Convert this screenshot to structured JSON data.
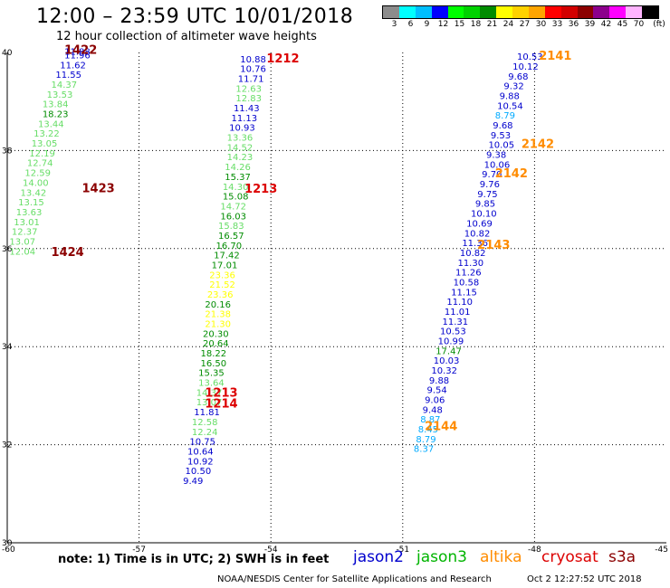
{
  "header": {
    "title": "12:00 – 23:59 UTC 10/01/2018",
    "subtitle": "12 hour collection of altimeter wave heights"
  },
  "legend": {
    "unit": "(ft)",
    "bins": [
      {
        "label": "3",
        "color": "#8c8c8c"
      },
      {
        "label": "6",
        "color": "#00ffff"
      },
      {
        "label": "9",
        "color": "#00bfff"
      },
      {
        "label": "12",
        "color": "#0000ff"
      },
      {
        "label": "15",
        "color": "#00ff00"
      },
      {
        "label": "18",
        "color": "#00d200"
      },
      {
        "label": "21",
        "color": "#008c00"
      },
      {
        "label": "24",
        "color": "#ffff00"
      },
      {
        "label": "27",
        "color": "#ffd200"
      },
      {
        "label": "30",
        "color": "#ffa500"
      },
      {
        "label": "33",
        "color": "#ff0000"
      },
      {
        "label": "36",
        "color": "#d20000"
      },
      {
        "label": "39",
        "color": "#8c0000"
      },
      {
        "label": "42",
        "color": "#8c008c"
      },
      {
        "label": "45",
        "color": "#ff00ff"
      },
      {
        "label": "70",
        "color": "#ffb4ff"
      },
      {
        "label": "",
        "color": "#000000"
      }
    ]
  },
  "map_axes": {
    "lon_range": [
      -60,
      -45
    ],
    "lat_range": [
      30,
      40
    ],
    "lon_ticks": [
      "-60",
      "-57",
      "-54",
      "-51",
      "-48",
      "-45"
    ],
    "lat_ticks": [
      "30",
      "32",
      "34",
      "36",
      "38",
      "40"
    ],
    "lon_tick_values": [
      -60,
      -57,
      -54,
      -51,
      -48,
      -45
    ],
    "lat_tick_values": [
      30,
      32,
      34,
      36,
      38,
      40
    ],
    "grid": "dotted"
  },
  "colors": {
    "jason2": "#0000cd",
    "jason3": "#00b400",
    "altika": "#ff8c00",
    "cryosat": "#dc0000",
    "s3a": "#8b0000",
    "light_green": "#66dd66",
    "dark_green": "#008c00",
    "yellow": "#ffff00",
    "cyan_blue": "#00aaff"
  },
  "tracks": [
    {
      "id": "track-1422",
      "labels": [
        {
          "text": "1422",
          "lon": -58.7,
          "lat": 39.97,
          "color": "s3a"
        },
        {
          "text": "1423",
          "lon": -58.3,
          "lat": 37.15,
          "color": "s3a"
        },
        {
          "text": "1424",
          "lon": -59.0,
          "lat": 35.85,
          "color": "s3a"
        }
      ],
      "points": [
        {
          "text": "11.88",
          "lon": -58.7,
          "lat": 39.95,
          "color": "jason2"
        },
        {
          "text": "11.96",
          "lon": -58.7,
          "lat": 39.88,
          "color": "jason2"
        },
        {
          "text": "11.62",
          "lon": -58.8,
          "lat": 39.68,
          "color": "jason2"
        },
        {
          "text": "11.55",
          "lon": -58.9,
          "lat": 39.48,
          "color": "jason2"
        },
        {
          "text": "14.37",
          "lon": -59.0,
          "lat": 39.28,
          "color": "light_green"
        },
        {
          "text": "13.53",
          "lon": -59.1,
          "lat": 39.08,
          "color": "light_green"
        },
        {
          "text": "13.84",
          "lon": -59.2,
          "lat": 38.88,
          "color": "light_green"
        },
        {
          "text": "18.23",
          "lon": -59.2,
          "lat": 38.68,
          "color": "dark_green"
        },
        {
          "text": "13.44",
          "lon": -59.3,
          "lat": 38.48,
          "color": "light_green"
        },
        {
          "text": "13.22",
          "lon": -59.4,
          "lat": 38.28,
          "color": "light_green"
        },
        {
          "text": "13.05",
          "lon": -59.45,
          "lat": 38.08,
          "color": "light_green"
        },
        {
          "text": "12.19",
          "lon": -59.5,
          "lat": 37.88,
          "color": "light_green"
        },
        {
          "text": "12.74",
          "lon": -59.55,
          "lat": 37.68,
          "color": "light_green"
        },
        {
          "text": "12.59",
          "lon": -59.6,
          "lat": 37.48,
          "color": "light_green"
        },
        {
          "text": "14.00",
          "lon": -59.65,
          "lat": 37.28,
          "color": "light_green"
        },
        {
          "text": "13.42",
          "lon": -59.7,
          "lat": 37.08,
          "color": "light_green"
        },
        {
          "text": "13.15",
          "lon": -59.75,
          "lat": 36.88,
          "color": "light_green"
        },
        {
          "text": "13.63",
          "lon": -59.8,
          "lat": 36.68,
          "color": "light_green"
        },
        {
          "text": "13.01",
          "lon": -59.85,
          "lat": 36.48,
          "color": "light_green"
        },
        {
          "text": "12.37",
          "lon": -59.9,
          "lat": 36.28,
          "color": "light_green"
        },
        {
          "text": "13.07",
          "lon": -59.95,
          "lat": 36.08,
          "color": "light_green"
        },
        {
          "text": "12.04",
          "lon": -59.95,
          "lat": 35.88,
          "color": "light_green"
        }
      ]
    },
    {
      "id": "track-1212",
      "labels": [
        {
          "text": "1212",
          "lon": -54.1,
          "lat": 39.8,
          "color": "cryosat"
        },
        {
          "text": "1213",
          "lon": -54.6,
          "lat": 37.14,
          "color": "cryosat"
        },
        {
          "text": "1213",
          "lon": -55.5,
          "lat": 32.98,
          "color": "cryosat"
        },
        {
          "text": "1214",
          "lon": -55.5,
          "lat": 32.76,
          "color": "cryosat"
        }
      ],
      "points": [
        {
          "text": "10.88",
          "lon": -54.7,
          "lat": 39.8,
          "color": "jason2"
        },
        {
          "text": "10.76",
          "lon": -54.7,
          "lat": 39.6,
          "color": "jason2"
        },
        {
          "text": "11.71",
          "lon": -54.75,
          "lat": 39.4,
          "color": "jason2"
        },
        {
          "text": "12.63",
          "lon": -54.8,
          "lat": 39.2,
          "color": "light_green"
        },
        {
          "text": "12.83",
          "lon": -54.8,
          "lat": 39.0,
          "color": "light_green"
        },
        {
          "text": "11.43",
          "lon": -54.85,
          "lat": 38.8,
          "color": "jason2"
        },
        {
          "text": "11.13",
          "lon": -54.9,
          "lat": 38.6,
          "color": "jason2"
        },
        {
          "text": "10.93",
          "lon": -54.95,
          "lat": 38.4,
          "color": "jason2"
        },
        {
          "text": "13.36",
          "lon": -55.0,
          "lat": 38.2,
          "color": "light_green"
        },
        {
          "text": "14.52",
          "lon": -55.0,
          "lat": 38.0,
          "color": "light_green"
        },
        {
          "text": "14.23",
          "lon": -55.0,
          "lat": 37.8,
          "color": "light_green"
        },
        {
          "text": "14.26",
          "lon": -55.05,
          "lat": 37.6,
          "color": "light_green"
        },
        {
          "text": "15.37",
          "lon": -55.05,
          "lat": 37.4,
          "color": "dark_green"
        },
        {
          "text": "14.30",
          "lon": -55.1,
          "lat": 37.2,
          "color": "light_green"
        },
        {
          "text": "15.08",
          "lon": -55.1,
          "lat": 37.0,
          "color": "dark_green"
        },
        {
          "text": "14.72",
          "lon": -55.15,
          "lat": 36.8,
          "color": "light_green"
        },
        {
          "text": "16.03",
          "lon": -55.15,
          "lat": 36.6,
          "color": "dark_green"
        },
        {
          "text": "15.83",
          "lon": -55.2,
          "lat": 36.4,
          "color": "light_green"
        },
        {
          "text": "16.57",
          "lon": -55.2,
          "lat": 36.2,
          "color": "dark_green"
        },
        {
          "text": "16.70",
          "lon": -55.25,
          "lat": 36.0,
          "color": "dark_green"
        },
        {
          "text": "17.42",
          "lon": -55.3,
          "lat": 35.8,
          "color": "dark_green"
        },
        {
          "text": "17.01",
          "lon": -55.35,
          "lat": 35.6,
          "color": "dark_green"
        },
        {
          "text": "23.36",
          "lon": -55.4,
          "lat": 35.4,
          "color": "yellow"
        },
        {
          "text": "21.52",
          "lon": -55.4,
          "lat": 35.2,
          "color": "yellow"
        },
        {
          "text": "23.36",
          "lon": -55.45,
          "lat": 35.0,
          "color": "yellow"
        },
        {
          "text": "20.16",
          "lon": -55.5,
          "lat": 34.8,
          "color": "dark_green"
        },
        {
          "text": "21.38",
          "lon": -55.5,
          "lat": 34.6,
          "color": "yellow"
        },
        {
          "text": "21.30",
          "lon": -55.5,
          "lat": 34.4,
          "color": "yellow"
        },
        {
          "text": "20.30",
          "lon": -55.55,
          "lat": 34.2,
          "color": "dark_green"
        },
        {
          "text": "20.64",
          "lon": -55.55,
          "lat": 34.0,
          "color": "dark_green"
        },
        {
          "text": "18.22",
          "lon": -55.6,
          "lat": 33.8,
          "color": "dark_green"
        },
        {
          "text": "16.50",
          "lon": -55.6,
          "lat": 33.6,
          "color": "dark_green"
        },
        {
          "text": "15.35",
          "lon": -55.65,
          "lat": 33.4,
          "color": "dark_green"
        },
        {
          "text": "13.64",
          "lon": -55.65,
          "lat": 33.2,
          "color": "light_green"
        },
        {
          "text": "14.37",
          "lon": -55.7,
          "lat": 33.0,
          "color": "light_green"
        },
        {
          "text": "13.07",
          "lon": -55.7,
          "lat": 32.8,
          "color": "light_green"
        },
        {
          "text": "11.81",
          "lon": -55.75,
          "lat": 32.6,
          "color": "jason2"
        },
        {
          "text": "12.58",
          "lon": -55.8,
          "lat": 32.4,
          "color": "light_green"
        },
        {
          "text": "12.24",
          "lon": -55.8,
          "lat": 32.2,
          "color": "light_green"
        },
        {
          "text": "10.75",
          "lon": -55.85,
          "lat": 32.0,
          "color": "jason2"
        },
        {
          "text": "10.64",
          "lon": -55.9,
          "lat": 31.8,
          "color": "jason2"
        },
        {
          "text": "10.92",
          "lon": -55.9,
          "lat": 31.6,
          "color": "jason2"
        },
        {
          "text": "10.50",
          "lon": -55.95,
          "lat": 31.4,
          "color": "jason2"
        },
        {
          "text": "9.49",
          "lon": -56.0,
          "lat": 31.2,
          "color": "jason2"
        }
      ]
    },
    {
      "id": "track-2141",
      "labels": [
        {
          "text": "2141",
          "lon": -47.9,
          "lat": 39.85,
          "color": "altika"
        },
        {
          "text": "2142",
          "lon": -48.3,
          "lat": 38.05,
          "color": "altika"
        },
        {
          "text": "2142",
          "lon": -48.9,
          "lat": 37.45,
          "color": "altika"
        },
        {
          "text": "2143",
          "lon": -49.3,
          "lat": 36.0,
          "color": "altika"
        },
        {
          "text": "2144",
          "lon": -50.5,
          "lat": 32.3,
          "color": "altika"
        }
      ],
      "points": [
        {
          "text": "10.53",
          "lon": -48.4,
          "lat": 39.85,
          "color": "jason2"
        },
        {
          "text": "10.12",
          "lon": -48.5,
          "lat": 39.65,
          "color": "jason2"
        },
        {
          "text": "9.68",
          "lon": -48.6,
          "lat": 39.45,
          "color": "jason2"
        },
        {
          "text": "9.32",
          "lon": -48.7,
          "lat": 39.25,
          "color": "jason2"
        },
        {
          "text": "9.88",
          "lon": -48.8,
          "lat": 39.05,
          "color": "jason2"
        },
        {
          "text": "10.54",
          "lon": -48.85,
          "lat": 38.85,
          "color": "jason2"
        },
        {
          "text": "8.79",
          "lon": -48.9,
          "lat": 38.65,
          "color": "cyan_blue"
        },
        {
          "text": "9.68",
          "lon": -48.95,
          "lat": 38.45,
          "color": "jason2"
        },
        {
          "text": "9.53",
          "lon": -49.0,
          "lat": 38.25,
          "color": "jason2"
        },
        {
          "text": "10.05",
          "lon": -49.05,
          "lat": 38.05,
          "color": "jason2"
        },
        {
          "text": "9.38",
          "lon": -49.1,
          "lat": 37.85,
          "color": "jason2"
        },
        {
          "text": "10.06",
          "lon": -49.15,
          "lat": 37.65,
          "color": "jason2"
        },
        {
          "text": "9.70",
          "lon": -49.2,
          "lat": 37.45,
          "color": "jason2"
        },
        {
          "text": "9.76",
          "lon": -49.25,
          "lat": 37.25,
          "color": "jason2"
        },
        {
          "text": "9.75",
          "lon": -49.3,
          "lat": 37.05,
          "color": "jason2"
        },
        {
          "text": "9.85",
          "lon": -49.35,
          "lat": 36.85,
          "color": "jason2"
        },
        {
          "text": "10.10",
          "lon": -49.45,
          "lat": 36.65,
          "color": "jason2"
        },
        {
          "text": "10.69",
          "lon": -49.55,
          "lat": 36.45,
          "color": "jason2"
        },
        {
          "text": "10.82",
          "lon": -49.6,
          "lat": 36.25,
          "color": "jason2"
        },
        {
          "text": "11.36",
          "lon": -49.65,
          "lat": 36.05,
          "color": "jason2"
        },
        {
          "text": "10.82",
          "lon": -49.7,
          "lat": 35.85,
          "color": "jason2"
        },
        {
          "text": "11.30",
          "lon": -49.75,
          "lat": 35.65,
          "color": "jason2"
        },
        {
          "text": "11.26",
          "lon": -49.8,
          "lat": 35.45,
          "color": "jason2"
        },
        {
          "text": "10.58",
          "lon": -49.85,
          "lat": 35.25,
          "color": "jason2"
        },
        {
          "text": "11.15",
          "lon": -49.9,
          "lat": 35.05,
          "color": "jason2"
        },
        {
          "text": "11.10",
          "lon": -50.0,
          "lat": 34.85,
          "color": "jason2"
        },
        {
          "text": "11.01",
          "lon": -50.05,
          "lat": 34.65,
          "color": "jason2"
        },
        {
          "text": "11.31",
          "lon": -50.1,
          "lat": 34.45,
          "color": "jason2"
        },
        {
          "text": "10.53",
          "lon": -50.15,
          "lat": 34.25,
          "color": "jason2"
        },
        {
          "text": "10.99",
          "lon": -50.2,
          "lat": 34.05,
          "color": "jason2"
        },
        {
          "text": "17.47",
          "lon": -50.25,
          "lat": 33.85,
          "color": "dark_green"
        },
        {
          "text": "10.03",
          "lon": -50.3,
          "lat": 33.65,
          "color": "jason2"
        },
        {
          "text": "10.32",
          "lon": -50.35,
          "lat": 33.45,
          "color": "jason2"
        },
        {
          "text": "9.88",
          "lon": -50.4,
          "lat": 33.25,
          "color": "jason2"
        },
        {
          "text": "9.54",
          "lon": -50.45,
          "lat": 33.05,
          "color": "jason2"
        },
        {
          "text": "9.06",
          "lon": -50.5,
          "lat": 32.85,
          "color": "jason2"
        },
        {
          "text": "9.48",
          "lon": -50.55,
          "lat": 32.65,
          "color": "jason2"
        },
        {
          "text": "8.87",
          "lon": -50.6,
          "lat": 32.45,
          "color": "cyan_blue"
        },
        {
          "text": "8.45",
          "lon": -50.65,
          "lat": 32.25,
          "color": "cyan_blue"
        },
        {
          "text": "8.79",
          "lon": -50.7,
          "lat": 32.05,
          "color": "cyan_blue"
        },
        {
          "text": "8.37",
          "lon": -50.75,
          "lat": 31.85,
          "color": "cyan_blue"
        }
      ]
    }
  ],
  "footer": {
    "note": "note:  1) Time is in UTC;  2) SWH is in feet",
    "satellites": [
      {
        "name": "jason2",
        "color": "#0000cd"
      },
      {
        "name": "jason3",
        "color": "#00b400"
      },
      {
        "name": "altika",
        "color": "#ff8c00"
      },
      {
        "name": "cryosat",
        "color": "#dc0000"
      },
      {
        "name": "s3a",
        "color": "#8b0000"
      }
    ],
    "credit": "NOAA/NESDIS Center for Satellite Applications and Research",
    "updated": "Oct  2 12:27:52 UTC 2018"
  }
}
